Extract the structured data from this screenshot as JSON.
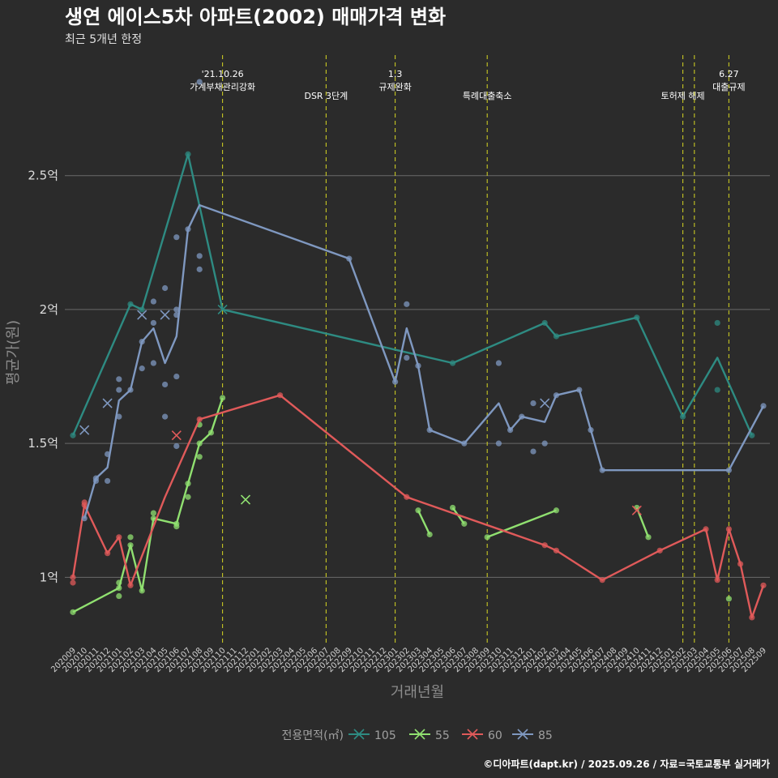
{
  "chart_data": {
    "type": "line",
    "title": "생연 에이스5차 아파트(2002) 매매가격 변화",
    "subtitle": "최근 5개년 한정",
    "xlabel": "거래년월",
    "ylabel": "평균가(원)",
    "caption": "©디아파트(dapt.kr) / 2025.09.26 / 자료=국토교통부 실거래가",
    "legend_title": "전용면적(㎡)",
    "ylim": [
      0.75,
      2.95
    ],
    "yticks": [
      {
        "value": 1.0,
        "label": "1억"
      },
      {
        "value": 1.5,
        "label": "1.5억"
      },
      {
        "value": 2.0,
        "label": "2억"
      },
      {
        "value": 2.5,
        "label": "2.5억"
      }
    ],
    "months": [
      "202009",
      "202010",
      "202011",
      "202012",
      "202101",
      "202102",
      "202103",
      "202104",
      "202105",
      "202106",
      "202107",
      "202108",
      "202109",
      "202110",
      "202111",
      "202112",
      "202201",
      "202202",
      "202203",
      "202204",
      "202205",
      "202206",
      "202207",
      "202208",
      "202209",
      "202210",
      "202211",
      "202212",
      "202301",
      "202302",
      "202303",
      "202304",
      "202305",
      "202306",
      "202307",
      "202308",
      "202309",
      "202310",
      "202311",
      "202312",
      "202401",
      "202402",
      "202403",
      "202404",
      "202405",
      "202406",
      "202407",
      "202408",
      "202409",
      "202410",
      "202411",
      "202412",
      "202501",
      "202502",
      "202503",
      "202504",
      "202505",
      "202506",
      "202507",
      "202508",
      "202509"
    ],
    "events": [
      {
        "month": "202110",
        "label": [
          "'21.10.26",
          "가계부채관리강화"
        ]
      },
      {
        "month": "202207",
        "label": [
          "DSR 3단계"
        ]
      },
      {
        "month": "202301",
        "label": [
          "1.3",
          "규제완화"
        ]
      },
      {
        "month": "202309",
        "label": [
          "특례대출축소"
        ]
      },
      {
        "month": "202502",
        "label": [
          "토허제 해제"
        ]
      },
      {
        "month": "202503",
        "label": []
      },
      {
        "month": "202506",
        "label": [
          "6.27",
          "대출규제"
        ]
      }
    ],
    "series": [
      {
        "name": "105",
        "color": "#2e8b82",
        "line": [
          [
            "202009",
            1.53
          ],
          [
            "202102",
            2.02
          ],
          [
            "202103",
            2.0
          ],
          [
            "202107",
            2.58
          ],
          [
            "202110",
            2.0
          ],
          [
            "202306",
            1.8
          ],
          [
            "202402",
            1.95
          ],
          [
            "202403",
            1.9
          ],
          [
            "202410",
            1.97
          ],
          [
            "202502",
            1.6
          ],
          [
            "202505",
            1.82
          ],
          [
            "202508",
            1.53
          ]
        ],
        "points": [
          [
            "202009",
            1.53
          ],
          [
            "202102",
            2.02
          ],
          [
            "202103",
            2.0
          ],
          [
            "202107",
            2.58
          ],
          [
            "202505",
            1.95
          ],
          [
            "202505",
            1.7
          ],
          [
            "202306",
            1.8
          ],
          [
            "202402",
            1.95
          ],
          [
            "202403",
            1.9
          ],
          [
            "202410",
            1.97
          ],
          [
            "202502",
            1.6
          ],
          [
            "202508",
            1.53
          ]
        ],
        "crosses": [
          [
            "202110",
            2.0
          ]
        ]
      },
      {
        "name": "55",
        "color": "#90e070",
        "line": [
          [
            "202009",
            0.87
          ],
          [
            "202101",
            0.96
          ],
          [
            "202102",
            1.12
          ],
          [
            "202103",
            0.95
          ],
          [
            "202104",
            1.22
          ],
          [
            "202106",
            1.2
          ],
          [
            "202108",
            1.5
          ],
          [
            "202109",
            1.54
          ],
          [
            "202110",
            1.67
          ]
        ],
        "line_extra": [
          [
            [
              "202303",
              1.25
            ],
            [
              "202304",
              1.16
            ]
          ],
          [
            [
              "202306",
              1.26
            ],
            [
              "202307",
              1.2
            ]
          ],
          [
            [
              "202309",
              1.15
            ],
            [
              "202403",
              1.25
            ]
          ],
          [
            [
              "202410",
              1.26
            ],
            [
              "202411",
              1.15
            ]
          ]
        ],
        "points": [
          [
            "202009",
            0.87
          ],
          [
            "202101",
            0.96
          ],
          [
            "202101",
            0.93
          ],
          [
            "202101",
            0.98
          ],
          [
            "202102",
            1.15
          ],
          [
            "202102",
            1.12
          ],
          [
            "202103",
            0.95
          ],
          [
            "202104",
            1.24
          ],
          [
            "202104",
            1.22
          ],
          [
            "202106",
            1.2
          ],
          [
            "202106",
            1.19
          ],
          [
            "202107",
            1.3
          ],
          [
            "202107",
            1.35
          ],
          [
            "202108",
            1.5
          ],
          [
            "202108",
            1.45
          ],
          [
            "202108",
            1.57
          ],
          [
            "202109",
            1.54
          ],
          [
            "202110",
            1.67
          ],
          [
            "202303",
            1.25
          ],
          [
            "202304",
            1.16
          ],
          [
            "202306",
            1.26
          ],
          [
            "202307",
            1.2
          ],
          [
            "202309",
            1.15
          ],
          [
            "202403",
            1.25
          ],
          [
            "202410",
            1.26
          ],
          [
            "202411",
            1.15
          ],
          [
            "202506",
            0.92
          ]
        ],
        "crosses": [
          [
            "202112",
            1.29
          ]
        ]
      },
      {
        "name": "60",
        "color": "#e05a5a",
        "line": [
          [
            "202009",
            1.0
          ],
          [
            "202010",
            1.27
          ],
          [
            "202012",
            1.09
          ],
          [
            "202101",
            1.15
          ],
          [
            "202102",
            0.97
          ],
          [
            "202105",
            1.3
          ],
          [
            "202108",
            1.59
          ],
          [
            "202203",
            1.68
          ],
          [
            "202302",
            1.3
          ],
          [
            "202402",
            1.12
          ],
          [
            "202403",
            1.1
          ],
          [
            "202407",
            0.99
          ],
          [
            "202412",
            1.1
          ],
          [
            "202504",
            1.18
          ],
          [
            "202505",
            0.99
          ],
          [
            "202506",
            1.18
          ],
          [
            "202507",
            1.05
          ],
          [
            "202508",
            0.85
          ],
          [
            "202509",
            0.97
          ]
        ],
        "points": [
          [
            "202009",
            1.0
          ],
          [
            "202009",
            0.98
          ],
          [
            "202010",
            1.27
          ],
          [
            "202010",
            1.28
          ],
          [
            "202012",
            1.09
          ],
          [
            "202101",
            1.15
          ],
          [
            "202102",
            0.97
          ],
          [
            "202108",
            1.59
          ],
          [
            "202203",
            1.68
          ],
          [
            "202302",
            1.3
          ],
          [
            "202402",
            1.12
          ],
          [
            "202403",
            1.1
          ],
          [
            "202407",
            0.99
          ],
          [
            "202412",
            1.1
          ],
          [
            "202504",
            1.18
          ],
          [
            "202505",
            0.99
          ],
          [
            "202506",
            1.18
          ],
          [
            "202507",
            1.05
          ],
          [
            "202508",
            0.85
          ],
          [
            "202509",
            0.97
          ]
        ],
        "crosses": [
          [
            "202106",
            1.53
          ],
          [
            "202410",
            1.25
          ]
        ]
      },
      {
        "name": "85",
        "color": "#7f98c0",
        "line": [
          [
            "202010",
            1.22
          ],
          [
            "202011",
            1.37
          ],
          [
            "202012",
            1.41
          ],
          [
            "202101",
            1.66
          ],
          [
            "202102",
            1.7
          ],
          [
            "202103",
            1.88
          ],
          [
            "202104",
            1.93
          ],
          [
            "202105",
            1.8
          ],
          [
            "202106",
            1.9
          ],
          [
            "202107",
            2.3
          ],
          [
            "202108",
            2.39
          ],
          [
            "202209",
            2.19
          ],
          [
            "202301",
            1.73
          ],
          [
            "202302",
            1.93
          ],
          [
            "202303",
            1.79
          ],
          [
            "202304",
            1.55
          ],
          [
            "202307",
            1.5
          ],
          [
            "202310",
            1.65
          ],
          [
            "202311",
            1.55
          ],
          [
            "202312",
            1.6
          ],
          [
            "202402",
            1.58
          ],
          [
            "202403",
            1.68
          ],
          [
            "202405",
            1.7
          ],
          [
            "202406",
            1.55
          ],
          [
            "202407",
            1.4
          ],
          [
            "202506",
            1.4
          ],
          [
            "202509",
            1.64
          ]
        ],
        "points": [
          [
            "202010",
            1.22
          ],
          [
            "202011",
            1.37
          ],
          [
            "202011",
            1.36
          ],
          [
            "202012",
            1.46
          ],
          [
            "202012",
            1.36
          ],
          [
            "202101",
            1.6
          ],
          [
            "202101",
            1.7
          ],
          [
            "202101",
            1.74
          ],
          [
            "202102",
            1.7
          ],
          [
            "202103",
            1.88
          ],
          [
            "202103",
            1.78
          ],
          [
            "202104",
            2.03
          ],
          [
            "202104",
            1.95
          ],
          [
            "202104",
            1.8
          ],
          [
            "202105",
            2.08
          ],
          [
            "202105",
            1.72
          ],
          [
            "202105",
            1.6
          ],
          [
            "202106",
            2.27
          ],
          [
            "202106",
            2.0
          ],
          [
            "202106",
            1.98
          ],
          [
            "202106",
            1.75
          ],
          [
            "202106",
            1.49
          ],
          [
            "202107",
            2.3
          ],
          [
            "202108",
            2.85
          ],
          [
            "202108",
            2.2
          ],
          [
            "202108",
            2.15
          ],
          [
            "202209",
            2.19
          ],
          [
            "202301",
            1.73
          ],
          [
            "202302",
            2.02
          ],
          [
            "202302",
            1.82
          ],
          [
            "202303",
            1.79
          ],
          [
            "202304",
            1.55
          ],
          [
            "202307",
            1.5
          ],
          [
            "202310",
            1.8
          ],
          [
            "202310",
            1.5
          ],
          [
            "202311",
            1.55
          ],
          [
            "202312",
            1.6
          ],
          [
            "202401",
            1.65
          ],
          [
            "202401",
            1.47
          ],
          [
            "202402",
            1.5
          ],
          [
            "202403",
            1.68
          ],
          [
            "202405",
            1.7
          ],
          [
            "202406",
            1.55
          ],
          [
            "202407",
            1.4
          ],
          [
            "202506",
            1.4
          ],
          [
            "202509",
            1.64
          ]
        ],
        "crosses": [
          [
            "202010",
            1.55
          ],
          [
            "202012",
            1.65
          ],
          [
            "202103",
            1.98
          ],
          [
            "202105",
            1.98
          ],
          [
            "202402",
            1.65
          ]
        ]
      }
    ]
  }
}
